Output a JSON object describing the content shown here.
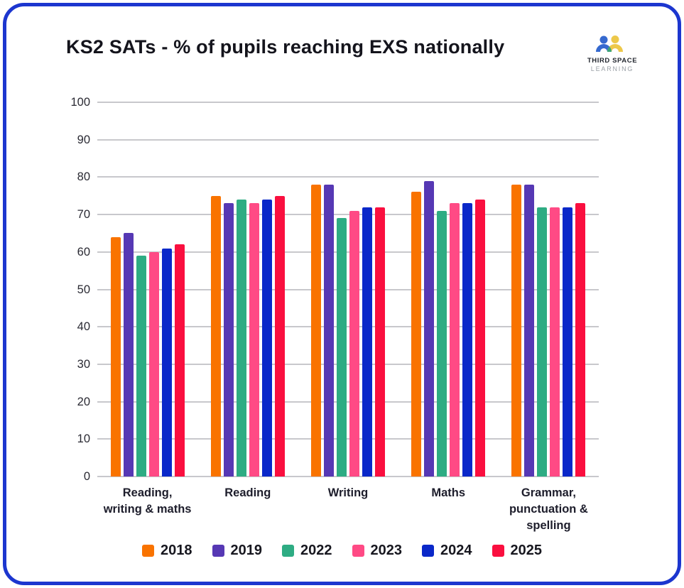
{
  "card": {
    "border_color": "#1c36cf"
  },
  "header": {
    "title": "KS2 SATs - % of pupils reaching EXS nationally",
    "logo": {
      "line1": "THIRD SPACE",
      "line2": "LEARNING",
      "blue": "#3569cf",
      "yellow": "#edc84a",
      "green": "#3aa578"
    }
  },
  "chart_data": {
    "type": "bar",
    "title": "KS2 SATs - % of pupils reaching EXS nationally",
    "categories": [
      "Reading, writing & maths",
      "Reading",
      "Writing",
      "Maths",
      "Grammar, punctuation & spelling"
    ],
    "series": [
      {
        "name": "2018",
        "color": "#f97300",
        "values": [
          64,
          75,
          78,
          76,
          78
        ]
      },
      {
        "name": "2019",
        "color": "#5638b4",
        "values": [
          65,
          73,
          78,
          79,
          78
        ]
      },
      {
        "name": "2022",
        "color": "#2eac83",
        "values": [
          59,
          74,
          69,
          71,
          72
        ]
      },
      {
        "name": "2023",
        "color": "#ff4a85",
        "values": [
          60,
          73,
          71,
          73,
          72
        ]
      },
      {
        "name": "2024",
        "color": "#0a28c9",
        "values": [
          61,
          74,
          72,
          73,
          72
        ]
      },
      {
        "name": "2025",
        "color": "#fa0f3f",
        "values": [
          62,
          75,
          72,
          74,
          73
        ]
      }
    ],
    "xlabel": "",
    "ylabel": "",
    "ylim": [
      0,
      100
    ],
    "yticks": [
      0,
      10,
      20,
      30,
      40,
      50,
      60,
      70,
      80,
      90,
      100
    ],
    "grid": true,
    "gridline_color": "#c8c8cc",
    "legend_position": "bottom"
  }
}
